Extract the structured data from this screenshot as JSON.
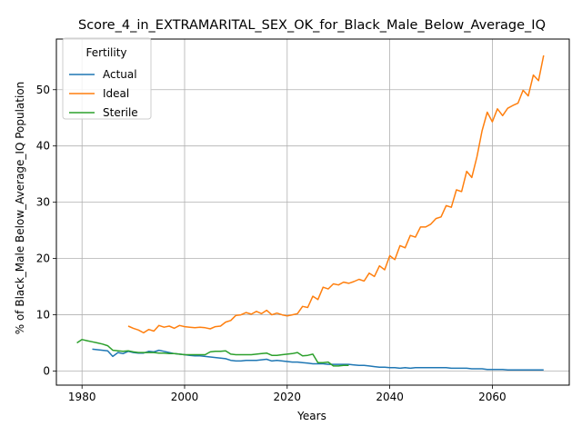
{
  "chart_data": {
    "type": "line",
    "title": "Score_4_in_EXTRAMARITAL_SEX_OK_for_Black_Male_Below_Average_IQ",
    "xlabel": "Years",
    "ylabel": "% of Black_Male Below_Average_IQ Population",
    "xlim": [
      1975,
      2075
    ],
    "ylim": [
      -2.5,
      59
    ],
    "xticks": [
      1980,
      2000,
      2020,
      2040,
      2060
    ],
    "yticks": [
      0,
      10,
      20,
      30,
      40,
      50
    ],
    "grid": true,
    "legend": {
      "title": "Fertility",
      "placement": "top-left"
    },
    "series": [
      {
        "name": "Actual",
        "color": "#1f77b4",
        "x": [
          1982,
          1983,
          1984,
          1985,
          1986,
          1987,
          1988,
          1989,
          1990,
          1991,
          1992,
          1993,
          1994,
          1995,
          1996,
          1997,
          1998,
          1999,
          2000,
          2001,
          2002,
          2003,
          2004,
          2005,
          2006,
          2007,
          2008,
          2009,
          2010,
          2011,
          2012,
          2013,
          2014,
          2015,
          2016,
          2017,
          2018,
          2019,
          2020,
          2021,
          2022,
          2023,
          2024,
          2025,
          2026,
          2027,
          2028,
          2029,
          2030,
          2031,
          2032,
          2033,
          2034,
          2035,
          2036,
          2037,
          2038,
          2039,
          2040,
          2041,
          2042,
          2043,
          2044,
          2045,
          2046,
          2047,
          2048,
          2049,
          2050,
          2051,
          2052,
          2053,
          2054,
          2055,
          2056,
          2057,
          2058,
          2059,
          2060,
          2061,
          2062,
          2063,
          2064,
          2065,
          2066,
          2067,
          2068,
          2069,
          2070
        ],
        "y": [
          3.9,
          3.8,
          3.7,
          3.6,
          2.6,
          3.3,
          3.1,
          3.5,
          3.3,
          3.2,
          3.2,
          3.5,
          3.4,
          3.7,
          3.5,
          3.3,
          3.1,
          3.0,
          2.9,
          2.8,
          2.7,
          2.7,
          2.6,
          2.5,
          2.4,
          2.3,
          2.2,
          1.9,
          1.8,
          1.8,
          1.9,
          1.9,
          1.9,
          2.0,
          2.1,
          1.8,
          1.9,
          1.8,
          1.7,
          1.6,
          1.6,
          1.5,
          1.4,
          1.3,
          1.3,
          1.3,
          1.2,
          1.2,
          1.2,
          1.2,
          1.2,
          1.1,
          1.0,
          1.0,
          0.9,
          0.8,
          0.7,
          0.7,
          0.6,
          0.6,
          0.5,
          0.6,
          0.5,
          0.6,
          0.6,
          0.6,
          0.6,
          0.6,
          0.6,
          0.6,
          0.5,
          0.5,
          0.5,
          0.5,
          0.4,
          0.4,
          0.4,
          0.3,
          0.3,
          0.3,
          0.3,
          0.2,
          0.2,
          0.2,
          0.2,
          0.2,
          0.2,
          0.2,
          0.2
        ]
      },
      {
        "name": "Ideal",
        "color": "#ff7f0e",
        "x": [
          1989,
          1990,
          1991,
          1992,
          1993,
          1994,
          1995,
          1996,
          1997,
          1998,
          1999,
          2000,
          2001,
          2002,
          2003,
          2004,
          2005,
          2006,
          2007,
          2008,
          2009,
          2010,
          2011,
          2012,
          2013,
          2014,
          2015,
          2016,
          2017,
          2018,
          2019,
          2020,
          2021,
          2022,
          2023,
          2024,
          2025,
          2026,
          2027,
          2028,
          2029,
          2030,
          2031,
          2032,
          2033,
          2034,
          2035,
          2036,
          2037,
          2038,
          2039,
          2040,
          2041,
          2042,
          2043,
          2044,
          2045,
          2046,
          2047,
          2048,
          2049,
          2050,
          2051,
          2052,
          2053,
          2054,
          2055,
          2056,
          2057,
          2058,
          2059,
          2060,
          2061,
          2062,
          2063,
          2064,
          2065,
          2066,
          2067,
          2068,
          2069,
          2070
        ],
        "y": [
          8.0,
          7.6,
          7.3,
          6.8,
          7.4,
          7.1,
          8.1,
          7.8,
          8.0,
          7.6,
          8.1,
          7.9,
          7.8,
          7.7,
          7.8,
          7.7,
          7.5,
          7.9,
          8.0,
          8.7,
          9.0,
          9.9,
          10.0,
          10.4,
          10.1,
          10.6,
          10.2,
          10.8,
          10.0,
          10.3,
          10.0,
          9.8,
          10.0,
          10.2,
          11.5,
          11.3,
          13.3,
          12.7,
          14.9,
          14.6,
          15.5,
          15.3,
          15.8,
          15.6,
          15.9,
          16.3,
          16.0,
          17.4,
          16.8,
          18.7,
          18.0,
          20.5,
          19.8,
          22.3,
          21.9,
          24.1,
          23.8,
          25.6,
          25.6,
          26.1,
          27.1,
          27.4,
          29.4,
          29.1,
          32.2,
          31.9,
          35.5,
          34.4,
          38.1,
          42.7,
          46.0,
          44.3,
          46.6,
          45.4,
          46.7,
          47.2,
          47.6,
          49.9,
          48.9,
          52.6,
          51.6,
          56.1
        ]
      },
      {
        "name": "Sterile",
        "color": "#2ca02c",
        "x": [
          1979,
          1980,
          1981,
          1982,
          1983,
          1984,
          1985,
          1986,
          1987,
          1988,
          1989,
          1990,
          1991,
          1992,
          1993,
          1994,
          1995,
          1996,
          1997,
          1998,
          1999,
          2000,
          2001,
          2002,
          2003,
          2004,
          2005,
          2006,
          2007,
          2008,
          2009,
          2010,
          2011,
          2012,
          2013,
          2014,
          2015,
          2016,
          2017,
          2018,
          2019,
          2020,
          2021,
          2022,
          2023,
          2024,
          2025,
          2026,
          2027,
          2028,
          2029,
          2030,
          2031,
          2032
        ],
        "y": [
          5.0,
          5.6,
          5.4,
          5.2,
          5.0,
          4.8,
          4.5,
          3.7,
          3.6,
          3.5,
          3.6,
          3.4,
          3.3,
          3.3,
          3.3,
          3.3,
          3.2,
          3.2,
          3.1,
          3.1,
          3.0,
          2.9,
          2.9,
          2.9,
          2.9,
          2.9,
          3.4,
          3.5,
          3.5,
          3.6,
          3.0,
          2.9,
          2.9,
          2.9,
          2.9,
          3.0,
          3.1,
          3.2,
          2.8,
          2.8,
          2.9,
          3.0,
          3.1,
          3.3,
          2.7,
          2.8,
          3.0,
          1.5,
          1.5,
          1.6,
          0.9,
          0.9,
          1.0,
          1.0
        ]
      }
    ]
  }
}
